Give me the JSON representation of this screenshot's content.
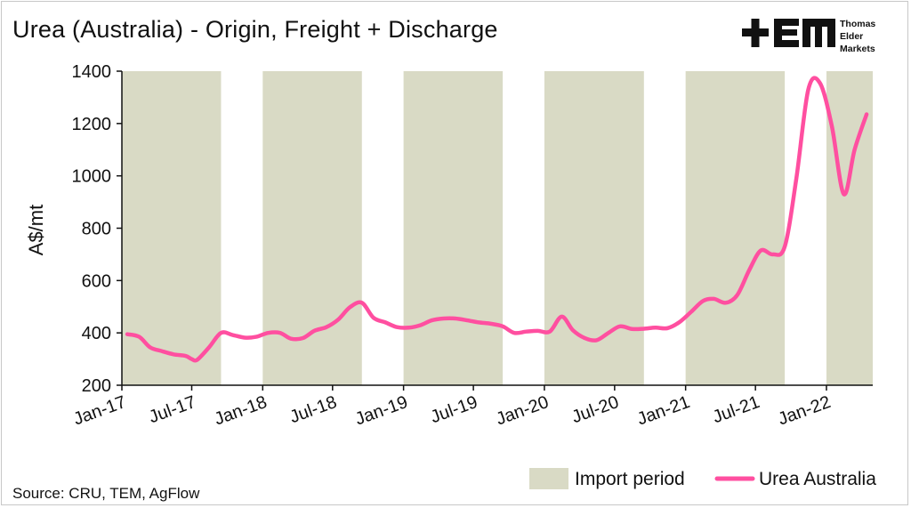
{
  "header": {
    "title": "Urea (Australia) - Origin, Freight + Discharge",
    "logo_line1": "Thomas",
    "logo_line2": "Elder",
    "logo_line3": "Markets",
    "logo_mark": "+EM"
  },
  "footer": {
    "source": "Source: CRU, TEM, AgFlow"
  },
  "colors": {
    "line": "#ff4fa0",
    "band": "#d9dac5",
    "axis": "#111111"
  },
  "chart_data": {
    "type": "line",
    "title": "Urea (Australia) - Origin, Freight + Discharge",
    "xlabel": "",
    "ylabel": "A$/mt",
    "ylim": [
      200,
      1400
    ],
    "yticks": [
      200,
      400,
      600,
      800,
      1000,
      1200,
      1400
    ],
    "xlim": [
      "2017-01-01",
      "2022-05-01"
    ],
    "xticks": [
      "Jan-17",
      "Jul-17",
      "Jan-18",
      "Jul-18",
      "Jan-19",
      "Jul-19",
      "Jan-20",
      "Jul-20",
      "Jan-21",
      "Jul-21",
      "Jan-22"
    ],
    "xtick_dates": [
      "2017-01-01",
      "2017-07-01",
      "2018-01-01",
      "2018-07-01",
      "2019-01-01",
      "2019-07-01",
      "2020-01-01",
      "2020-07-01",
      "2021-01-01",
      "2021-07-01",
      "2022-01-01"
    ],
    "grid": false,
    "legend_position": "bottom-right",
    "import_periods": {
      "name": "Import period",
      "color": "#d9dac5",
      "ranges": [
        [
          "2017-01-01",
          "2017-09-15"
        ],
        [
          "2018-01-01",
          "2018-09-15"
        ],
        [
          "2019-01-01",
          "2019-09-15"
        ],
        [
          "2020-01-01",
          "2020-09-15"
        ],
        [
          "2021-01-01",
          "2021-09-15"
        ],
        [
          "2022-01-01",
          "2022-05-01"
        ]
      ]
    },
    "series": [
      {
        "name": "Urea Australia",
        "color": "#ff4fa0",
        "x": [
          "2017-01-15",
          "2017-02-15",
          "2017-03-15",
          "2017-04-15",
          "2017-05-15",
          "2017-06-15",
          "2017-07-01",
          "2017-07-15",
          "2017-08-15",
          "2017-09-15",
          "2017-10-15",
          "2017-11-15",
          "2017-12-15",
          "2018-01-15",
          "2018-02-15",
          "2018-03-15",
          "2018-04-15",
          "2018-05-15",
          "2018-06-15",
          "2018-07-15",
          "2018-08-15",
          "2018-09-15",
          "2018-10-15",
          "2018-11-15",
          "2018-12-15",
          "2019-01-15",
          "2019-02-15",
          "2019-03-15",
          "2019-04-15",
          "2019-05-15",
          "2019-06-15",
          "2019-07-15",
          "2019-08-15",
          "2019-09-15",
          "2019-10-15",
          "2019-11-15",
          "2019-12-15",
          "2020-01-15",
          "2020-02-15",
          "2020-03-15",
          "2020-04-15",
          "2020-05-15",
          "2020-06-15",
          "2020-07-15",
          "2020-08-15",
          "2020-09-15",
          "2020-10-15",
          "2020-11-15",
          "2020-12-15",
          "2021-01-15",
          "2021-02-15",
          "2021-03-15",
          "2021-04-15",
          "2021-05-15",
          "2021-06-15",
          "2021-07-15",
          "2021-08-15",
          "2021-09-15",
          "2021-10-15",
          "2021-11-15",
          "2021-12-15",
          "2022-01-15",
          "2022-02-15",
          "2022-03-15",
          "2022-04-15"
        ],
        "values": [
          395,
          385,
          345,
          330,
          318,
          312,
          300,
          297,
          345,
          400,
          392,
          382,
          385,
          400,
          400,
          378,
          380,
          408,
          422,
          450,
          498,
          515,
          458,
          440,
          422,
          420,
          430,
          448,
          455,
          455,
          448,
          440,
          435,
          425,
          400,
          405,
          408,
          405,
          462,
          410,
          380,
          372,
          400,
          425,
          415,
          416,
          420,
          418,
          440,
          480,
          522,
          530,
          515,
          545,
          640,
          715,
          700,
          730,
          990,
          1330,
          1355,
          1190,
          930,
          1100,
          1235
        ]
      }
    ]
  }
}
